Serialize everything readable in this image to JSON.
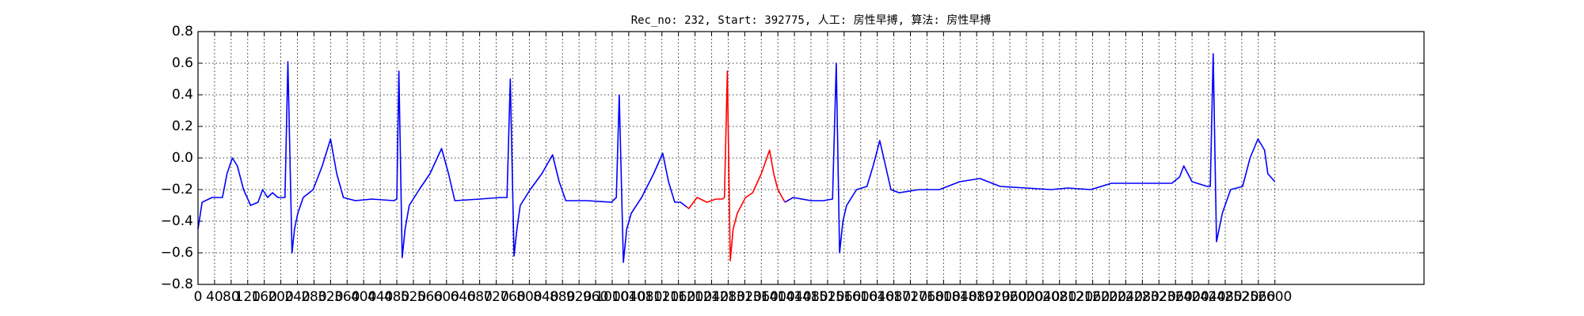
{
  "chart_data": {
    "type": "line",
    "title": "Rec_no: 232, Start: 392775, 人工: 房性早搏, 算法: 房性早搏",
    "xlim": [
      0,
      2960
    ],
    "xticks": [
      0,
      40,
      80,
      120,
      160,
      200,
      240,
      280,
      320,
      360,
      400,
      440,
      480,
      520,
      560,
      600,
      640,
      680,
      720,
      760,
      800,
      840,
      880,
      920,
      960,
      1000,
      1040,
      1080,
      1120,
      1160,
      1200,
      1240,
      1280,
      1320,
      1360,
      1400,
      1440,
      1480,
      1520,
      1560,
      1600,
      1640,
      1680,
      1720,
      1760,
      1800,
      1840,
      1880,
      1920,
      1960,
      2000,
      2040,
      2080,
      2120,
      2160,
      2200,
      2240,
      2280,
      2320,
      2360,
      2400,
      2440,
      2480,
      2520,
      2560,
      2600
    ],
    "ylim": [
      -0.8,
      0.8
    ],
    "yticks": [
      {
        "value": -0.8,
        "label": "−0.8"
      },
      {
        "value": -0.6,
        "label": "−0.6"
      },
      {
        "value": -0.4,
        "label": "−0.4"
      },
      {
        "value": -0.2,
        "label": "−0.2"
      },
      {
        "value": 0,
        "label": "0.0"
      },
      0.2,
      0.4,
      0.6,
      0.8
    ],
    "grid": true,
    "series": [
      {
        "color": "#0000ff",
        "x": [
          0,
          10,
          34,
          59,
          70,
          83,
          95,
          110,
          127,
          145,
          156,
          168,
          180,
          193,
          210,
          217,
          222,
          227,
          233,
          241,
          254,
          278,
          300,
          320,
          335,
          351,
          380,
          420,
          473,
          480,
          485,
          493,
          500,
          510,
          534,
          560,
          588,
          605,
          620,
          680,
          729,
          746,
          754,
          763,
          770,
          778,
          802,
          830,
          856,
          872,
          888,
          940,
          998,
          1010,
          1017,
          1027,
          1035,
          1046,
          1071,
          1100,
          1122,
          1136,
          1151,
          1165,
          1180
        ],
        "values": [
          -0.45,
          -0.28,
          -0.25,
          -0.25,
          -0.1,
          0.0,
          -0.05,
          -0.2,
          -0.3,
          -0.28,
          -0.2,
          -0.25,
          -0.22,
          -0.25,
          -0.25,
          0.61,
          0.0,
          -0.6,
          -0.45,
          -0.35,
          -0.25,
          -0.2,
          -0.05,
          0.12,
          -0.1,
          -0.25,
          -0.27,
          -0.26,
          -0.27,
          -0.26,
          0.55,
          -0.63,
          -0.45,
          -0.3,
          -0.2,
          -0.1,
          0.06,
          -0.1,
          -0.27,
          -0.26,
          -0.25,
          -0.25,
          0.5,
          -0.62,
          -0.45,
          -0.3,
          -0.2,
          -0.1,
          0.02,
          -0.15,
          -0.27,
          -0.27,
          -0.28,
          -0.25,
          0.4,
          -0.66,
          -0.45,
          -0.35,
          -0.25,
          -0.1,
          0.03,
          -0.15,
          -0.28,
          -0.28,
          -0.31
        ]
      },
      {
        "color": "#ff0000",
        "x": [
          1180,
          1185,
          1205,
          1229,
          1250,
          1266,
          1271,
          1278,
          1285,
          1292,
          1302,
          1322,
          1339,
          1360,
          1380,
          1390,
          1400,
          1417
        ],
        "values": [
          -0.31,
          -0.32,
          -0.25,
          -0.28,
          -0.26,
          -0.26,
          -0.25,
          0.55,
          -0.65,
          -0.45,
          -0.35,
          -0.25,
          -0.22,
          -0.1,
          0.05,
          -0.1,
          -0.2,
          -0.28
        ]
      },
      {
        "color": "#0000ff",
        "x": [
          1417,
          1437,
          1480,
          1510,
          1532,
          1541,
          1549,
          1557,
          1566,
          1590,
          1615,
          1630,
          1646,
          1660,
          1673,
          1693,
          1740,
          1790,
          1839,
          1888,
          1937,
          2000,
          2059,
          2100,
          2156,
          2205,
          2280,
          2351,
          2370,
          2380,
          2400,
          2437,
          2444,
          2451,
          2459,
          2473,
          2493,
          2522,
          2540,
          2559,
          2575,
          2583,
          2600
        ],
        "values": [
          -0.28,
          -0.25,
          -0.27,
          -0.27,
          -0.26,
          0.6,
          -0.6,
          -0.4,
          -0.3,
          -0.2,
          -0.18,
          -0.05,
          0.11,
          -0.05,
          -0.2,
          -0.22,
          -0.2,
          -0.2,
          -0.15,
          -0.13,
          -0.18,
          -0.19,
          -0.2,
          -0.19,
          -0.2,
          -0.16,
          -0.16,
          -0.16,
          -0.12,
          -0.05,
          -0.15,
          -0.18,
          -0.18,
          0.66,
          -0.53,
          -0.35,
          -0.2,
          -0.18,
          0.0,
          0.12,
          0.05,
          -0.1,
          -0.15
        ]
      }
    ]
  }
}
